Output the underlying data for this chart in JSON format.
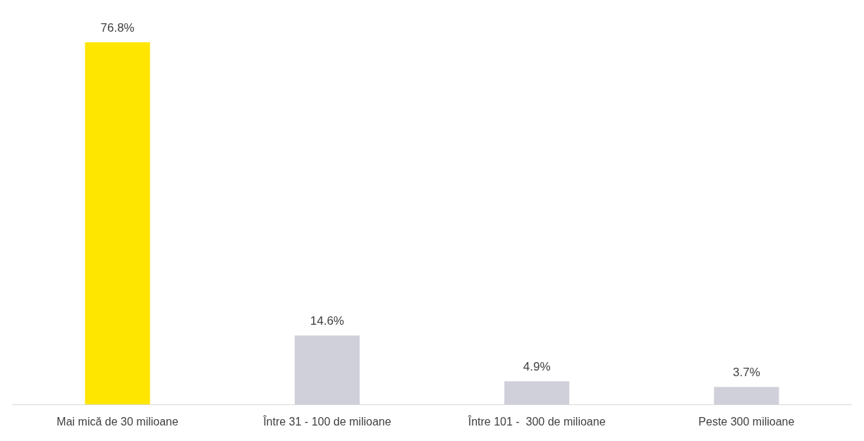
{
  "chart_data": {
    "type": "bar",
    "categories": [
      "Mai mică de 30 milioane",
      "Între 31 - 100 de milioane",
      "Între 101 -  300 de milioane",
      "Peste 300 milioane"
    ],
    "values": [
      76.8,
      14.6,
      4.9,
      3.7
    ],
    "colors": [
      "#ffe600",
      "#d0d0da",
      "#d0d0da",
      "#d0d0da"
    ],
    "value_labels": [
      "76.8%",
      "14.6%",
      "4.9%",
      "3.7%"
    ]
  }
}
